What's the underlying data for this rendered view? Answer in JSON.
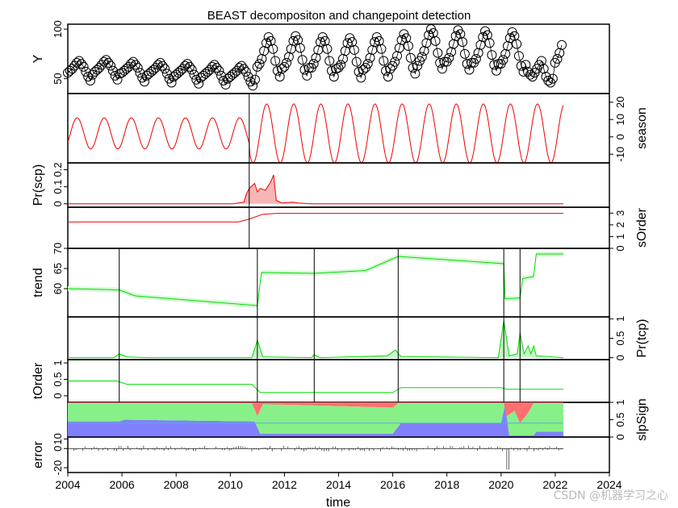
{
  "title": "BEAST decompositon and changepoint detection",
  "watermark": "CSDN @机器学习之心",
  "colors": {
    "season": "#ee0000",
    "scp_fill": "#f7b6b6",
    "trend": "#00dd00",
    "trend_band": "#d8f8d8",
    "tcp_fill": "#c9f5c9",
    "slp_neg": "#ff7070",
    "slp_zero": "#88f088",
    "slp_pos": "#8080ff",
    "slp_line": "#5aaed8",
    "points": "#000000",
    "changepoint_line": "#000000"
  },
  "chart_data": {
    "type": "line",
    "xlabel": "time",
    "xlim": [
      2004,
      2024
    ],
    "xticks": [
      "2004",
      "2006",
      "2008",
      "2010",
      "2012",
      "2014",
      "2016",
      "2018",
      "2020",
      "2022",
      "2024"
    ],
    "season_changepoints": [
      2010.7
    ],
    "trend_changepoints": [
      2005.9,
      2011.0,
      2013.1,
      2016.2,
      2020.1,
      2020.7
    ],
    "panels": [
      {
        "id": "Y",
        "ylabel": "Y",
        "side": "left",
        "ylim": [
          35,
          105
        ],
        "yticks": [
          "50",
          "100"
        ],
        "ytick_values": [
          50,
          100
        ],
        "data": {
          "type": "scatter",
          "start": 2004.0,
          "step": 0.0833,
          "amplitude": 12,
          "base_start": 57,
          "note_points": "monthly observations"
        },
        "values": [
          56,
          58,
          60,
          63,
          66,
          68,
          65,
          62,
          57,
          52,
          48,
          54,
          57,
          59,
          61,
          64,
          67,
          69,
          66,
          63,
          58,
          53,
          49,
          55,
          56,
          58,
          60,
          62,
          65,
          67,
          64,
          61,
          56,
          51,
          47,
          53,
          55,
          57,
          59,
          61,
          64,
          66,
          63,
          60,
          55,
          50,
          46,
          52,
          54,
          56,
          58,
          60,
          63,
          65,
          62,
          59,
          54,
          49,
          45,
          51,
          53,
          55,
          57,
          59,
          62,
          64,
          61,
          58,
          53,
          48,
          44,
          50,
          52,
          54,
          56,
          58,
          61,
          63,
          60,
          57,
          52,
          47,
          43,
          49,
          62,
          65,
          70,
          78,
          86,
          92,
          88,
          80,
          68,
          58,
          52,
          60,
          62,
          66,
          72,
          80,
          88,
          93,
          89,
          81,
          69,
          59,
          53,
          61,
          61,
          65,
          71,
          79,
          87,
          92,
          88,
          80,
          68,
          58,
          52,
          60,
          61,
          64,
          70,
          78,
          86,
          91,
          87,
          79,
          67,
          57,
          51,
          59,
          61,
          65,
          71,
          79,
          87,
          92,
          88,
          80,
          68,
          58,
          52,
          60,
          63,
          67,
          73,
          81,
          89,
          95,
          91,
          83,
          71,
          61,
          55,
          63,
          68,
          72,
          78,
          86,
          94,
          100,
          96,
          88,
          76,
          66,
          60,
          67,
          67,
          71,
          77,
          85,
          93,
          99,
          95,
          87,
          75,
          65,
          59,
          66,
          66,
          70,
          76,
          84,
          92,
          98,
          94,
          86,
          74,
          64,
          58,
          65,
          65,
          69,
          75,
          83,
          91,
          97,
          93,
          85,
          73,
          63,
          57,
          64,
          57,
          54,
          52,
          56,
          60,
          64,
          68,
          60,
          52,
          48,
          46,
          50,
          66,
          70,
          76,
          84,
          92,
          98,
          94,
          86,
          74,
          64,
          58,
          65,
          68,
          72,
          78
        ]
      },
      {
        "id": "season",
        "ylabel": "season",
        "side": "right",
        "ylim": [
          -15,
          25
        ],
        "yticks": [
          "-10",
          "0",
          "10",
          "20"
        ],
        "ytick_values": [
          -10,
          0,
          10,
          20
        ],
        "data": {
          "type": "line",
          "cycles": [
            [
              2004,
              2010.7,
              9
            ],
            [
              2010.7,
              2022.3,
              18
            ]
          ]
        }
      },
      {
        "id": "Pr(scp)",
        "ylabel": "Pr(scp)",
        "side": "left",
        "ylim": [
          -0.02,
          0.24
        ],
        "yticks": [
          "0",
          "0.1",
          "0.2"
        ],
        "ytick_values": [
          0,
          0.1,
          0.2
        ],
        "data": {
          "type": "area",
          "points": [
            [
              2004,
              0
            ],
            [
              2010.1,
              0
            ],
            [
              2010.5,
              0.01
            ],
            [
              2010.6,
              0.06
            ],
            [
              2010.7,
              0.09
            ],
            [
              2010.9,
              0.12
            ],
            [
              2011.0,
              0.07
            ],
            [
              2011.1,
              0.09
            ],
            [
              2011.3,
              0.08
            ],
            [
              2011.5,
              0.13
            ],
            [
              2011.6,
              0.17
            ],
            [
              2011.7,
              0.02
            ],
            [
              2011.9,
              0.005
            ],
            [
              2012.3,
              0.01
            ],
            [
              2012.5,
              0.005
            ],
            [
              2013,
              0
            ],
            [
              2022.3,
              0
            ]
          ]
        }
      },
      {
        "id": "sOrder",
        "ylabel": "sOrder",
        "side": "right",
        "ylim": [
          0,
          3.5
        ],
        "yticks": [
          "0",
          "1",
          "2",
          "3"
        ],
        "ytick_values": [
          0,
          1,
          2,
          3
        ],
        "data": {
          "type": "line",
          "points": [
            [
              2004,
              2.25
            ],
            [
              2010.3,
              2.25
            ],
            [
              2010.7,
              2.5
            ],
            [
              2011.2,
              2.9
            ],
            [
              2011.7,
              2.98
            ],
            [
              2022.3,
              2.98
            ]
          ]
        }
      },
      {
        "id": "trend",
        "ylabel": "trend",
        "side": "left",
        "ylim": [
          53,
          70
        ],
        "yticks": [
          "60",
          "65",
          "70"
        ],
        "ytick_values": [
          60,
          65,
          70
        ],
        "data": {
          "type": "line",
          "points": [
            [
              2004,
              60.0
            ],
            [
              2005.9,
              59.7
            ],
            [
              2006.5,
              58.2
            ],
            [
              2011.0,
              55.8
            ],
            [
              2011.15,
              64.0
            ],
            [
              2013.1,
              63.8
            ],
            [
              2015,
              64.5
            ],
            [
              2016.2,
              68.0
            ],
            [
              2020.1,
              66.2
            ],
            [
              2020.15,
              57.5
            ],
            [
              2020.7,
              57.7
            ],
            [
              2020.8,
              62.5
            ],
            [
              2021.2,
              63.0
            ],
            [
              2021.3,
              68.6
            ],
            [
              2022.3,
              68.6
            ]
          ],
          "band": 0.6
        }
      },
      {
        "id": "Pr(tcp)",
        "ylabel": "Pr(tcp)",
        "side": "right",
        "ylim": [
          -0.05,
          1.05
        ],
        "yticks": [
          "0",
          "0.5",
          "1"
        ],
        "ytick_values": [
          0,
          0.5,
          1
        ],
        "data": {
          "type": "area",
          "points": [
            [
              2004,
              0
            ],
            [
              2005.7,
              0
            ],
            [
              2005.9,
              0.1
            ],
            [
              2006.2,
              0.02
            ],
            [
              2007,
              0
            ],
            [
              2010.8,
              0
            ],
            [
              2011.0,
              0.45
            ],
            [
              2011.2,
              0.02
            ],
            [
              2013.0,
              0
            ],
            [
              2013.1,
              0.08
            ],
            [
              2013.3,
              0
            ],
            [
              2015.8,
              0.05
            ],
            [
              2016.1,
              0.2
            ],
            [
              2016.3,
              0.03
            ],
            [
              2019.9,
              0
            ],
            [
              2020.1,
              0.95
            ],
            [
              2020.3,
              0.05
            ],
            [
              2020.6,
              0.1
            ],
            [
              2020.7,
              0.65
            ],
            [
              2020.85,
              0.1
            ],
            [
              2021.0,
              0.3
            ],
            [
              2021.1,
              0.1
            ],
            [
              2021.2,
              0.3
            ],
            [
              2021.3,
              0.05
            ],
            [
              2022.3,
              0
            ]
          ]
        }
      },
      {
        "id": "tOrder",
        "ylabel": "tOrder",
        "side": "left",
        "ylim": [
          -0.2,
          1.1
        ],
        "yticks": [
          "0",
          "0.5",
          "1"
        ],
        "ytick_values": [
          0,
          0.5,
          1
        ],
        "data": {
          "type": "line",
          "points": [
            [
              2004,
              0.45
            ],
            [
              2005.8,
              0.45
            ],
            [
              2006.2,
              0.35
            ],
            [
              2010.8,
              0.35
            ],
            [
              2011.1,
              0.1
            ],
            [
              2016.0,
              0.1
            ],
            [
              2016.3,
              0.25
            ],
            [
              2020.0,
              0.25
            ],
            [
              2020.2,
              0.2
            ],
            [
              2022.3,
              0.2
            ]
          ]
        }
      },
      {
        "id": "slpSign",
        "ylabel": "slpSign",
        "side": "right",
        "ylim": [
          0,
          1
        ],
        "yticks": [
          "0",
          "0.5",
          "1"
        ],
        "ytick_values": [
          0,
          0.5,
          1
        ],
        "data": {
          "type": "stack",
          "pos_top": [
            [
              2004,
              0.45
            ],
            [
              2005.9,
              0.45
            ],
            [
              2006.1,
              0.5
            ],
            [
              2010.9,
              0.45
            ],
            [
              2011.1,
              0.1
            ],
            [
              2016.0,
              0.1
            ],
            [
              2016.3,
              0.4
            ],
            [
              2020.0,
              0.4
            ],
            [
              2020.15,
              0.95
            ],
            [
              2020.3,
              0.05
            ],
            [
              2021.2,
              0.05
            ],
            [
              2021.3,
              0.15
            ],
            [
              2022.3,
              0.15
            ]
          ],
          "neg_top": [
            [
              2004,
              0.98
            ],
            [
              2010.8,
              0.98
            ],
            [
              2011.0,
              0.6
            ],
            [
              2011.2,
              0.95
            ],
            [
              2016.0,
              0.85
            ],
            [
              2016.2,
              0.98
            ],
            [
              2020.1,
              0.98
            ],
            [
              2020.2,
              0.6
            ],
            [
              2020.5,
              0.75
            ],
            [
              2020.7,
              0.4
            ],
            [
              2021.0,
              0.7
            ],
            [
              2021.2,
              0.98
            ],
            [
              2022.3,
              0.98
            ]
          ],
          "mid_line": 0.4
        }
      },
      {
        "id": "error",
        "ylabel": "error",
        "side": "left",
        "ylim": [
          -25,
          12
        ],
        "yticks": [
          "-20",
          "0",
          "10"
        ],
        "ytick_values": [
          -20,
          0,
          10
        ],
        "data": {
          "type": "spike"
        }
      }
    ]
  }
}
